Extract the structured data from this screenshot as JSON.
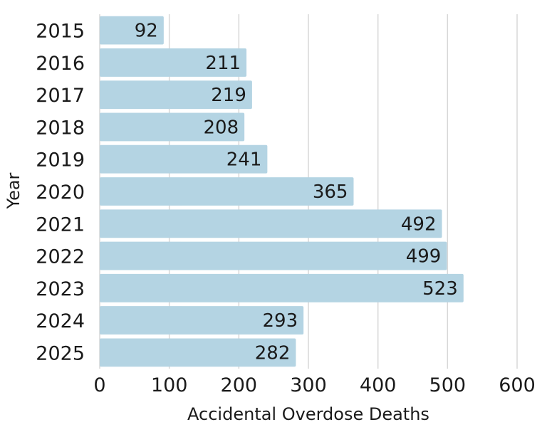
{
  "chart_data": {
    "type": "bar",
    "orientation": "horizontal",
    "title": "",
    "xlabel": "Accidental Overdose Deaths",
    "ylabel": "Year",
    "categories": [
      "2015",
      "2016",
      "2017",
      "2018",
      "2019",
      "2020",
      "2021",
      "2022",
      "2023",
      "2024",
      "2025"
    ],
    "values": [
      92,
      211,
      219,
      208,
      241,
      365,
      492,
      499,
      523,
      293,
      282
    ],
    "xlim": [
      0,
      600
    ],
    "xticks": [
      "0",
      "100",
      "200",
      "300",
      "400",
      "500",
      "600"
    ],
    "grid": "vertical",
    "data_labels": true,
    "bar_color": "#b4d4e3"
  }
}
